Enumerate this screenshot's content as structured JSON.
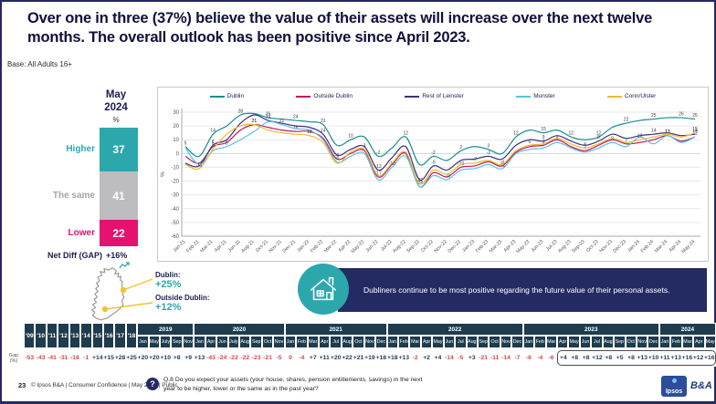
{
  "title": "Over one in three (37%) believe the value of their assets will increase over the next twelve months. The overall outlook has been positive since April 2023.",
  "base": "Base: All Adults 16+",
  "snapshot": {
    "period_line1": "May",
    "period_line2": "2024",
    "percent_sign": "%",
    "segments": [
      {
        "label": "Higher",
        "value": 37,
        "color": "#2CA8AC",
        "label_color": "#2CA8AC"
      },
      {
        "label": "The same",
        "value": 41,
        "color": "#BDBDBF",
        "label_color": "#A5A5A8"
      },
      {
        "label": "Lower",
        "value": 22,
        "color": "#E5126F",
        "label_color": "#E5126F"
      }
    ],
    "net_diff_label": "Net Diff (GAP)",
    "net_diff_value": "+16%"
  },
  "map_callout": {
    "accent_color": "#F2C230",
    "value_color": "#2CA8AC",
    "items": [
      {
        "label": "Dublin:",
        "value": "+25%"
      },
      {
        "label": "Outside Dublin:",
        "value": "+12%"
      }
    ]
  },
  "insight": {
    "icon": "house-icon",
    "text": "Dubliners continue to be most positive regarding the future value of their personal assets."
  },
  "chart_data": {
    "type": "line",
    "legend_position": "top",
    "grid": true,
    "ylabel": "%",
    "ylim": [
      -60,
      30
    ],
    "yticks": [
      30,
      20,
      10,
      0,
      -10,
      -20,
      -30,
      -40,
      -50,
      -60
    ],
    "x": [
      "Jan-21",
      "Feb-21",
      "Mar-21",
      "Apr-21",
      "Jun-21",
      "Aug-21",
      "Oct-21",
      "Nov-21",
      "Dec-21",
      "Jan-22",
      "Feb-22",
      "Mar-22",
      "Apr-22",
      "May-22",
      "Jun-22",
      "Jul-22",
      "Aug-22",
      "Sep-22",
      "Oct-22",
      "Nov-22",
      "Dec-22",
      "Jan-23",
      "Feb-23",
      "Mar-23",
      "Apr-23",
      "May-23",
      "Jun-23",
      "Jul-23",
      "Aug-23",
      "Sep-23",
      "Oct-23",
      "Nov-23",
      "Dec-23",
      "Jan-24",
      "Feb-24",
      "Mar-24",
      "Apr-24",
      "May-24"
    ],
    "series": [
      {
        "name": "Dublin",
        "color": "#188F92",
        "values": [
          5,
          -2,
          14,
          20,
          28,
          29,
          26,
          25,
          24,
          23,
          21,
          6,
          10,
          12,
          -2,
          4,
          12,
          -8,
          -2,
          -5,
          2,
          5,
          3,
          0,
          12,
          17,
          15,
          17,
          12,
          10,
          12,
          19,
          22,
          24,
          25,
          26,
          26,
          25
        ]
      },
      {
        "name": "Outside Dublin",
        "color": "#C2185B",
        "values": [
          -2,
          -7,
          5,
          8,
          17,
          21,
          19,
          17,
          16,
          16,
          11,
          -4,
          0,
          2,
          -17,
          -8,
          0,
          -24,
          -14,
          -17,
          -10,
          -9,
          -6,
          -9,
          1,
          5,
          6,
          10,
          5,
          2,
          6,
          10,
          7,
          8,
          10,
          13,
          9,
          12
        ]
      },
      {
        "name": "Rest of Leinster",
        "color": "#3A3286",
        "values": [
          -7,
          -9,
          6,
          10,
          22,
          28,
          24,
          22,
          20,
          19,
          14,
          -1,
          3,
          5,
          -12,
          -3,
          5,
          -19,
          -9,
          -12,
          -5,
          -4,
          -2,
          -4,
          6,
          10,
          9,
          13,
          9,
          6,
          9,
          14,
          11,
          13,
          14,
          15,
          13,
          14
        ]
      },
      {
        "name": "Munster",
        "color": "#58C2E8",
        "values": [
          4,
          -8,
          2,
          5,
          10,
          16,
          23,
          21,
          18,
          17,
          10,
          -6,
          -2,
          0,
          -19,
          -10,
          -2,
          -24,
          -16,
          -19,
          -12,
          -11,
          -8,
          -11,
          0,
          3,
          4,
          8,
          4,
          1,
          4,
          8,
          5,
          12,
          7,
          13,
          8,
          12
        ]
      },
      {
        "name": "Conn/Ulster",
        "color": "#EDBA2C",
        "values": [
          -8,
          -11,
          3,
          14,
          20,
          21,
          17,
          15,
          14,
          13,
          8,
          -7,
          1,
          3,
          -16,
          -7,
          1,
          -22,
          -12,
          -15,
          -8,
          -7,
          -5,
          -8,
          2,
          6,
          7,
          11,
          7,
          4,
          7,
          11,
          8,
          10,
          12,
          14,
          12,
          15
        ]
      }
    ]
  },
  "timeline": {
    "row_label_line1": "Gap",
    "row_label_line2": "(%)",
    "groups": [
      {
        "year": "'09",
        "months": null,
        "values": [
          "-53"
        ]
      },
      {
        "year": "'10",
        "months": null,
        "values": [
          "-43"
        ]
      },
      {
        "year": "'11",
        "months": null,
        "values": [
          "-41"
        ]
      },
      {
        "year": "'12",
        "months": null,
        "values": [
          "-31"
        ]
      },
      {
        "year": "'13",
        "months": null,
        "values": [
          "-18"
        ]
      },
      {
        "year": "'14",
        "months": null,
        "values": [
          "-1"
        ]
      },
      {
        "year": "'15",
        "months": null,
        "values": [
          "+14"
        ]
      },
      {
        "year": "'16",
        "months": null,
        "values": [
          "+15"
        ]
      },
      {
        "year": "'17",
        "months": null,
        "values": [
          "+28"
        ]
      },
      {
        "year": "'18",
        "months": null,
        "values": [
          "+25"
        ]
      },
      {
        "year": "2019",
        "months": [
          "Jan",
          "May",
          "July",
          "Sep",
          "Nov"
        ],
        "values": [
          "+20",
          "+20",
          "+10",
          "+8",
          "+9"
        ]
      },
      {
        "year": "2020",
        "months": [
          "Jan",
          "Apr",
          "Jun",
          "July",
          "Aug",
          "Sep",
          "Oct",
          "Nov"
        ],
        "values": [
          "+13",
          "-43",
          "-24",
          "-22",
          "-22",
          "-23",
          "-21",
          "-5"
        ]
      },
      {
        "year": "2021",
        "months": [
          "Jan",
          "Feb",
          "Mar",
          "Apr",
          "Jul",
          "Aug",
          "Oct",
          "Nov",
          "Dec"
        ],
        "values": [
          "0",
          "-4",
          "+7",
          "+11",
          "+20",
          "+22",
          "+21",
          "+19",
          "+18"
        ]
      },
      {
        "year": "2022",
        "months": [
          "Jan",
          "Feb",
          "Mar",
          "Apr",
          "May",
          "Jun",
          "Jul",
          "Aug",
          "Sep",
          "Oct",
          "Nov",
          "Dec"
        ],
        "values": [
          "+18",
          "+13",
          "-2",
          "+2",
          "+4",
          "-14",
          "-5",
          "+3",
          "-21",
          "-11",
          "-14",
          "-7"
        ]
      },
      {
        "year": "2023",
        "months": [
          "Jan",
          "Feb",
          "Mar",
          "Apr",
          "May",
          "Jun",
          "Jul",
          "Aug",
          "Sep",
          "Oct",
          "Nov",
          "Dec"
        ],
        "values": [
          "-6",
          "-4",
          "-6",
          "+4",
          "+8",
          "+8",
          "+12",
          "+8",
          "+5",
          "+8",
          "+13",
          "+10"
        ]
      },
      {
        "year": "2024",
        "months": [
          "Jan",
          "Feb",
          "Mar",
          "Apr",
          "May"
        ],
        "values": [
          "+11",
          "+13",
          "+16",
          "+12",
          "+16"
        ]
      }
    ],
    "highlight_start": 47,
    "highlight_end": 60
  },
  "footer": {
    "page": "23",
    "copyright": "© Ipsos B&A | Consumer Confidence | May 2024 | Public",
    "question_icon": "?",
    "question": "Q.8 Do you expect your assets (your house, shares, pension entitlements, savings) in the next year to be higher, lower or the same as in the past year?",
    "logo_ipsos": "Ipsos",
    "logo_ba": "B&A"
  }
}
